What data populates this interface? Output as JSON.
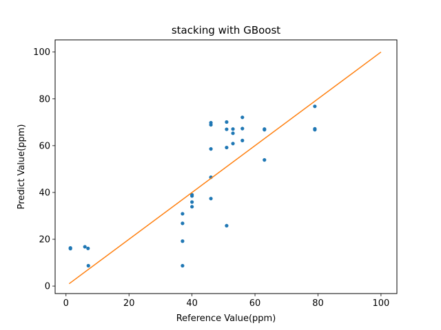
{
  "chart_data": {
    "type": "scatter",
    "title": "stacking with GBoost",
    "xlabel": "Reference Value(ppm)",
    "ylabel": "Predict Value(ppm)",
    "xlim": [
      -3.45,
      105.05
    ],
    "ylim": [
      -3.2,
      105.2
    ],
    "xticks": [
      0,
      20,
      40,
      60,
      80,
      100
    ],
    "yticks": [
      0,
      20,
      40,
      60,
      80,
      100
    ],
    "grid": false,
    "colors": {
      "scatter": "#1f77b4",
      "line": "#ff7f0e"
    },
    "series": [
      {
        "kind": "scatter",
        "points": [
          {
            "x": 1.4,
            "y": 16.0
          },
          {
            "x": 1.4,
            "y": 16.3
          },
          {
            "x": 6.0,
            "y": 16.8
          },
          {
            "x": 7.0,
            "y": 16.1
          },
          {
            "x": 7.1,
            "y": 8.7
          },
          {
            "x": 37.0,
            "y": 8.7
          },
          {
            "x": 37.0,
            "y": 19.2
          },
          {
            "x": 37.0,
            "y": 26.8
          },
          {
            "x": 37.0,
            "y": 30.9
          },
          {
            "x": 40.0,
            "y": 33.9
          },
          {
            "x": 40.0,
            "y": 35.9
          },
          {
            "x": 40.0,
            "y": 38.5
          },
          {
            "x": 40.0,
            "y": 39.0
          },
          {
            "x": 46.0,
            "y": 37.4
          },
          {
            "x": 46.0,
            "y": 46.5
          },
          {
            "x": 46.0,
            "y": 58.6
          },
          {
            "x": 46.0,
            "y": 68.9
          },
          {
            "x": 46.0,
            "y": 69.8
          },
          {
            "x": 51.0,
            "y": 25.8
          },
          {
            "x": 51.0,
            "y": 59.2
          },
          {
            "x": 51.0,
            "y": 67.0
          },
          {
            "x": 51.0,
            "y": 70.1
          },
          {
            "x": 53.0,
            "y": 60.9
          },
          {
            "x": 53.0,
            "y": 65.3
          },
          {
            "x": 53.0,
            "y": 67.1
          },
          {
            "x": 56.0,
            "y": 62.2
          },
          {
            "x": 56.0,
            "y": 67.3
          },
          {
            "x": 56.0,
            "y": 72.1
          },
          {
            "x": 63.0,
            "y": 53.9
          },
          {
            "x": 63.0,
            "y": 66.8
          },
          {
            "x": 63.0,
            "y": 67.1
          },
          {
            "x": 79.0,
            "y": 66.8
          },
          {
            "x": 79.0,
            "y": 67.2
          },
          {
            "x": 79.0,
            "y": 76.8
          }
        ]
      },
      {
        "kind": "line",
        "points": [
          {
            "x": 1.0,
            "y": 1.0
          },
          {
            "x": 100.0,
            "y": 100.0
          }
        ]
      }
    ]
  }
}
